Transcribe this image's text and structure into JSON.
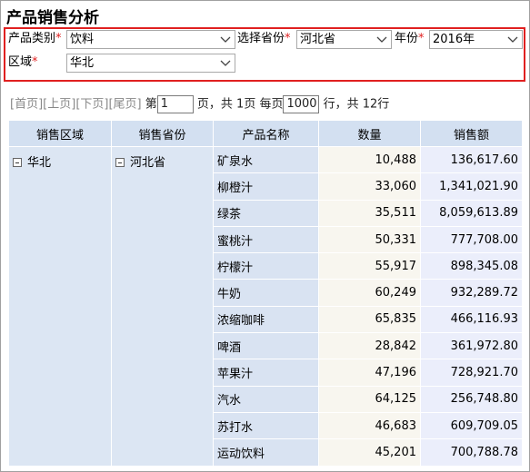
{
  "header": {
    "title": "产品销售分析"
  },
  "required_mark": "*",
  "filters": [
    {
      "label": "产品类别",
      "value": "饮料"
    },
    {
      "label": "选择省份",
      "value": "河北省"
    },
    {
      "label": "年份",
      "value": "2016年"
    },
    {
      "label": "区域",
      "value": "华北"
    }
  ],
  "pager": {
    "first": "[首页]",
    "prev": "[上页]",
    "next": "[下页]",
    "last": "[尾页]",
    "page_prefix": "第",
    "page": "1",
    "page_text": "页，共 1页 每页",
    "page_size": "1000",
    "count_text": "行，共 12行"
  },
  "table": {
    "columns": [
      "销售区域",
      "销售省份",
      "产品名称",
      "数量",
      "销售额"
    ],
    "region": "华北",
    "province": "河北省",
    "rows": [
      [
        "矿泉水",
        "10,488",
        "136,617.60"
      ],
      [
        "柳橙汁",
        "33,060",
        "1,341,021.90"
      ],
      [
        "绿茶",
        "35,511",
        "8,059,613.89"
      ],
      [
        "蜜桃汁",
        "50,331",
        "777,708.00"
      ],
      [
        "柠檬汁",
        "55,917",
        "898,345.08"
      ],
      [
        "牛奶",
        "60,249",
        "932,289.72"
      ],
      [
        "浓缩咖啡",
        "65,835",
        "466,116.93"
      ],
      [
        "啤酒",
        "28,842",
        "361,972.80"
      ],
      [
        "苹果汁",
        "47,196",
        "728,921.70"
      ],
      [
        "汽水",
        "64,125",
        "256,748.80"
      ],
      [
        "苏打水",
        "46,683",
        "609,709.05"
      ],
      [
        "运动饮料",
        "45,201",
        "700,788.78"
      ]
    ]
  }
}
